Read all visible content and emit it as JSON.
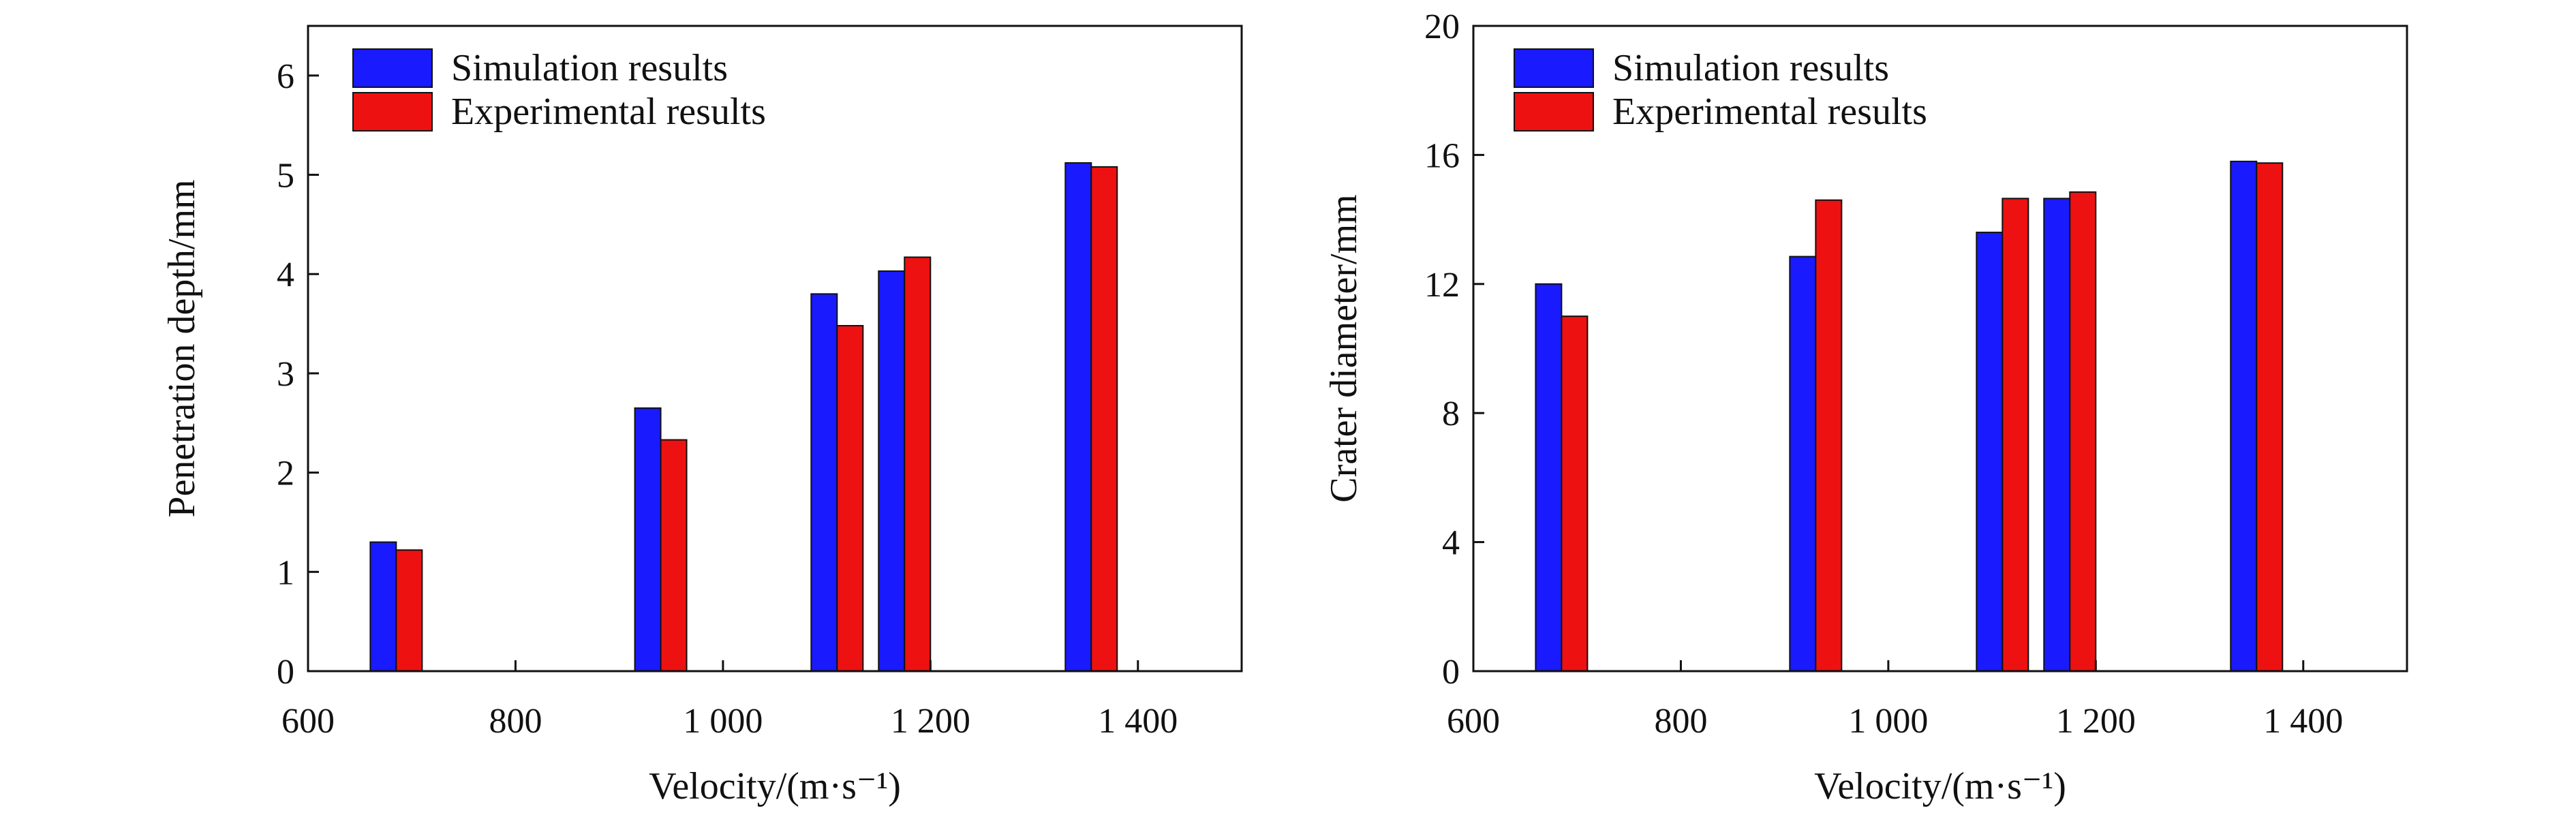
{
  "chart_data": [
    {
      "type": "bar",
      "ylabel": "Penetration depth/mm",
      "xlabel": "Velocity/(m·s⁻¹)",
      "xlim": [
        600,
        1500
      ],
      "ylim": [
        0,
        6.5
      ],
      "x_ticks": [
        600,
        800,
        1000,
        1200,
        1400
      ],
      "x_tick_labels": [
        "600",
        "800",
        "1 000",
        "1 200",
        "1 400"
      ],
      "y_ticks": [
        0,
        1,
        2,
        3,
        4,
        5,
        6
      ],
      "y_tick_labels": [
        "0",
        "1",
        "2",
        "3",
        "4",
        "5",
        "6"
      ],
      "legend_position": "top-left",
      "x": [
        685,
        940,
        1110,
        1175,
        1355
      ],
      "series": [
        {
          "name": "Simulation results",
          "color": "#1a1aff",
          "values": [
            1.3,
            2.65,
            3.8,
            4.03,
            5.12
          ]
        },
        {
          "name": "Experimental results",
          "color": "#ee1111",
          "values": [
            1.22,
            2.33,
            3.48,
            4.17,
            5.08
          ]
        }
      ]
    },
    {
      "type": "bar",
      "ylabel": "Crater diameter/mm",
      "xlabel": "Velocity/(m·s⁻¹)",
      "xlim": [
        600,
        1500
      ],
      "ylim": [
        0,
        20
      ],
      "x_ticks": [
        600,
        800,
        1000,
        1200,
        1400
      ],
      "x_tick_labels": [
        "600",
        "800",
        "1 000",
        "1 200",
        "1 400"
      ],
      "y_ticks": [
        0,
        4,
        8,
        12,
        16,
        20
      ],
      "y_tick_labels": [
        "0",
        "4",
        "8",
        "12",
        "16",
        "20"
      ],
      "legend_position": "top-left",
      "x": [
        685,
        930,
        1110,
        1175,
        1355
      ],
      "series": [
        {
          "name": "Simulation results",
          "color": "#1a1aff",
          "values": [
            12.0,
            12.85,
            13.6,
            14.65,
            15.8
          ]
        },
        {
          "name": "Experimental results",
          "color": "#ee1111",
          "values": [
            11.0,
            14.6,
            14.65,
            14.85,
            15.75
          ]
        }
      ]
    }
  ]
}
